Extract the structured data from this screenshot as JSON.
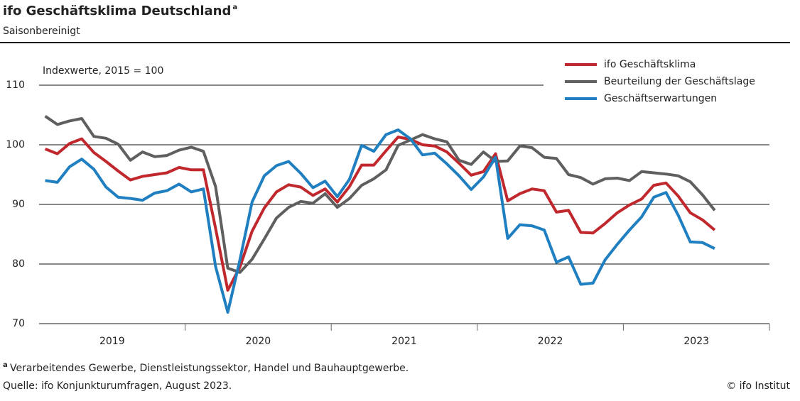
{
  "chart_data": {
    "type": "line",
    "title": "ifo Geschäftsklima Deutschland",
    "title_marker": "a",
    "subtitle": "Saisonbereinigt",
    "y_axis_label": "Indexwerte, 2015 = 100",
    "categories": [
      null,
      null,
      null,
      null,
      null,
      null,
      null,
      null,
      null,
      null,
      null,
      null,
      null,
      null,
      null,
      null,
      null,
      null,
      null,
      null,
      null,
      null,
      null,
      null,
      null,
      null,
      null,
      null,
      null,
      null,
      null,
      null,
      null,
      null,
      null,
      null,
      null,
      null,
      null,
      null,
      null,
      null,
      null,
      null,
      null,
      null,
      null,
      null,
      null,
      null,
      null,
      null,
      null,
      null,
      null,
      null
    ],
    "year_labels": [
      "2019",
      "2020",
      "2021",
      "2022",
      "2023"
    ],
    "ylim": [
      70,
      110
    ],
    "yticks": [
      70,
      80,
      90,
      100,
      110
    ],
    "grid": true,
    "legend": "top-right",
    "series": [
      {
        "name": "ifo Geschäftsklima",
        "color": "#c0282d",
        "values": [
          99.3,
          98.5,
          100.2,
          101.0,
          98.7,
          97.2,
          95.6,
          94.1,
          94.7,
          95.0,
          95.3,
          96.2,
          95.8,
          95.8,
          86.0,
          75.6,
          79.5,
          85.5,
          89.4,
          92.1,
          93.3,
          92.9,
          91.5,
          92.6,
          90.4,
          93.0,
          96.6,
          96.6,
          99.0,
          101.3,
          100.9,
          100.0,
          99.8,
          98.8,
          96.9,
          94.9,
          95.5,
          98.5,
          90.6,
          91.8,
          92.6,
          92.3,
          88.7,
          89.0,
          85.3,
          85.2,
          86.8,
          88.6,
          89.9,
          90.9,
          93.2,
          93.6,
          91.4,
          88.6,
          87.4,
          85.7
        ]
      },
      {
        "name": "Beurteilung der Geschäftslage",
        "color": "#5f5f5f",
        "values": [
          104.8,
          103.4,
          104.0,
          104.4,
          101.4,
          101.1,
          100.1,
          97.4,
          98.8,
          98.0,
          98.2,
          99.1,
          99.6,
          98.9,
          93.0,
          79.3,
          78.6,
          80.8,
          84.2,
          87.7,
          89.5,
          90.5,
          90.2,
          91.8,
          89.5,
          91.0,
          93.2,
          94.3,
          95.8,
          99.9,
          100.8,
          101.7,
          101.0,
          100.5,
          97.4,
          96.7,
          98.8,
          97.2,
          97.3,
          99.8,
          99.5,
          97.9,
          97.7,
          95.0,
          94.5,
          93.4,
          94.3,
          94.4,
          94.0,
          95.5,
          95.3,
          95.1,
          94.8,
          93.8,
          91.6,
          89.0
        ]
      },
      {
        "name": "Geschäftserwartungen",
        "color": "#1f7fc0",
        "values": [
          94.0,
          93.7,
          96.3,
          97.6,
          95.9,
          92.9,
          91.2,
          91.0,
          90.7,
          91.9,
          92.3,
          93.4,
          92.1,
          92.6,
          79.6,
          71.9,
          80.7,
          90.4,
          94.8,
          96.5,
          97.2,
          95.2,
          92.8,
          93.9,
          91.3,
          94.2,
          99.9,
          98.9,
          101.7,
          102.5,
          101.0,
          98.3,
          98.6,
          96.8,
          94.8,
          92.5,
          94.6,
          97.9,
          84.3,
          86.6,
          86.4,
          85.7,
          80.3,
          81.2,
          76.6,
          76.8,
          80.7,
          83.3,
          85.7,
          87.9,
          91.2,
          92.0,
          88.2,
          83.7,
          83.6,
          82.6
        ]
      }
    ],
    "footnote_marker": "a",
    "footnote": "Verarbeitendes Gewerbe, Dienstleistungssektor, Handel und Bauhauptgewerbe.",
    "source": "Quelle: ifo Konjunkturumfragen, August 2023.",
    "copyright": "© ifo Institut"
  }
}
